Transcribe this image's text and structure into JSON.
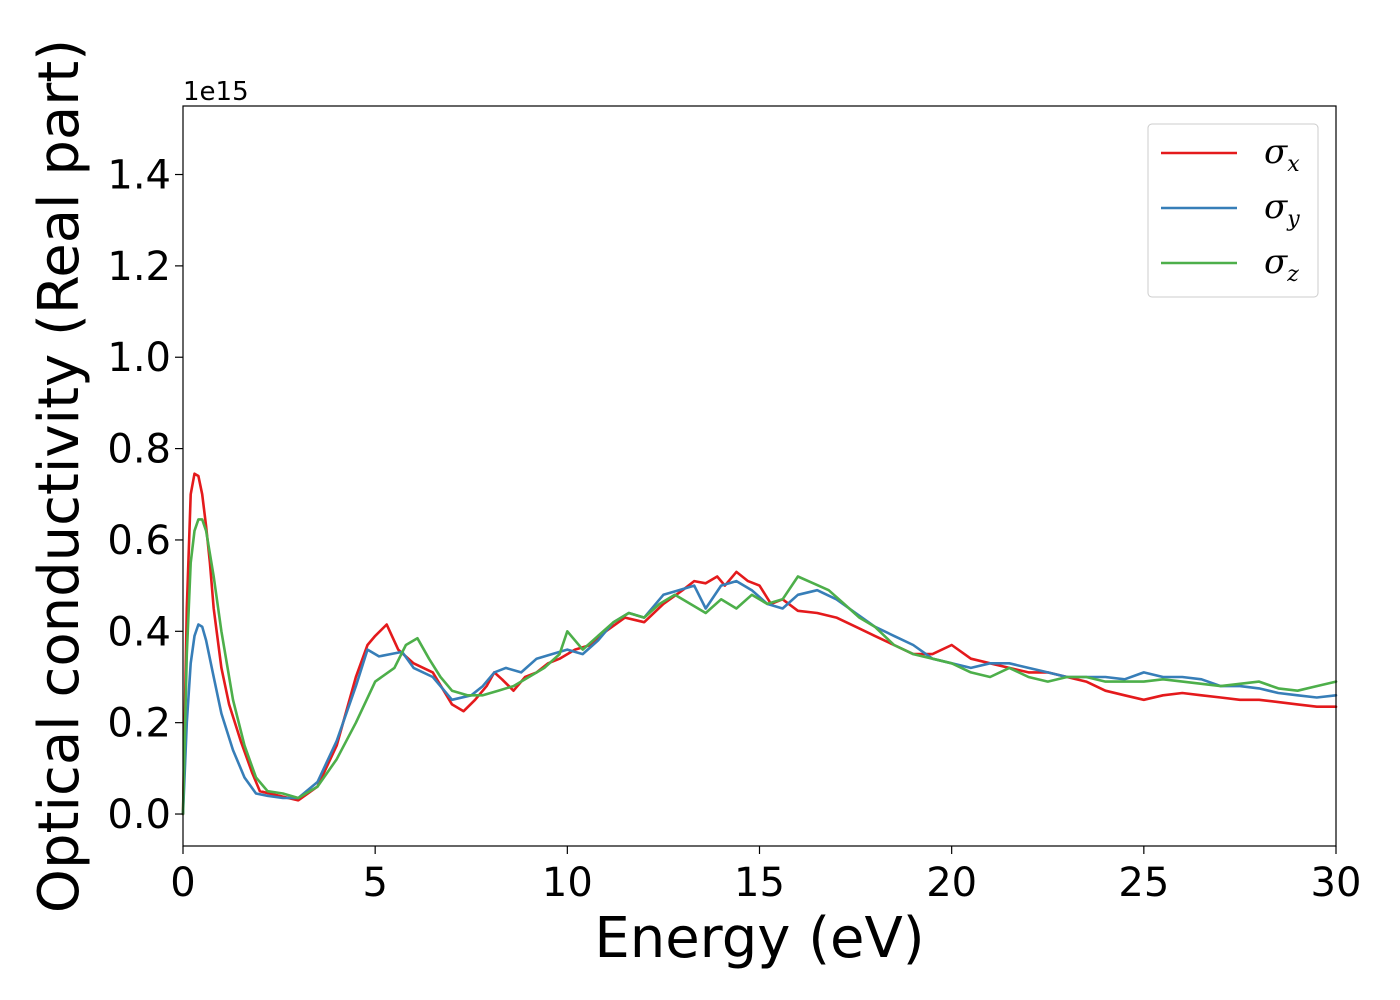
{
  "chart_data": {
    "type": "line",
    "xlabel": "Energy (eV)",
    "ylabel": "Optical conductivity (Real part)",
    "y_offset_text": "1e15",
    "xlim": [
      0,
      30
    ],
    "ylim": [
      -0.07,
      1.55
    ],
    "xticks": [
      0,
      5,
      10,
      15,
      20,
      25,
      30
    ],
    "xtick_labels": [
      "0",
      "5",
      "10",
      "15",
      "20",
      "25",
      "30"
    ],
    "yticks": [
      0.0,
      0.2,
      0.4,
      0.6,
      0.8,
      1.0,
      1.2,
      1.4
    ],
    "ytick_labels": [
      "0.0",
      "0.2",
      "0.4",
      "0.6",
      "0.8",
      "1.0",
      "1.2",
      "1.4"
    ],
    "grid": false,
    "legend_position": "top-right",
    "series": [
      {
        "name": "σx",
        "legend_base": "σ",
        "legend_sub": "x",
        "color": "#e41a1c",
        "x": [
          0,
          0.1,
          0.2,
          0.3,
          0.4,
          0.5,
          0.6,
          0.7,
          0.8,
          1.0,
          1.2,
          1.5,
          1.8,
          2.0,
          2.5,
          3.0,
          3.5,
          4.0,
          4.5,
          4.8,
          5.0,
          5.3,
          5.6,
          6.0,
          6.5,
          7.0,
          7.3,
          7.6,
          7.9,
          8.1,
          8.3,
          8.6,
          8.9,
          9.2,
          9.5,
          9.8,
          10.2,
          10.6,
          11.0,
          11.5,
          12.0,
          12.5,
          13.0,
          13.3,
          13.6,
          13.9,
          14.1,
          14.4,
          14.7,
          15.0,
          15.3,
          15.6,
          16.0,
          16.5,
          17.0,
          17.5,
          18.0,
          18.5,
          19.0,
          19.5,
          20.0,
          20.5,
          21.0,
          21.5,
          22.0,
          22.5,
          23.0,
          23.5,
          24.0,
          24.5,
          25.0,
          25.5,
          26.0,
          26.5,
          27.0,
          27.5,
          28.0,
          28.5,
          29.0,
          29.5,
          30.0
        ],
        "y": [
          0.0,
          0.45,
          0.7,
          0.745,
          0.74,
          0.7,
          0.63,
          0.55,
          0.45,
          0.32,
          0.24,
          0.16,
          0.09,
          0.05,
          0.04,
          0.03,
          0.06,
          0.15,
          0.3,
          0.37,
          0.39,
          0.415,
          0.36,
          0.33,
          0.31,
          0.24,
          0.225,
          0.25,
          0.28,
          0.31,
          0.295,
          0.27,
          0.3,
          0.31,
          0.33,
          0.34,
          0.36,
          0.37,
          0.4,
          0.43,
          0.42,
          0.46,
          0.49,
          0.51,
          0.505,
          0.52,
          0.5,
          0.53,
          0.51,
          0.5,
          0.46,
          0.47,
          0.445,
          0.44,
          0.43,
          0.41,
          0.39,
          0.37,
          0.35,
          0.35,
          0.37,
          0.34,
          0.33,
          0.32,
          0.31,
          0.31,
          0.3,
          0.29,
          0.27,
          0.26,
          0.25,
          0.26,
          0.265,
          0.26,
          0.255,
          0.25,
          0.25,
          0.245,
          0.24,
          0.235,
          0.235
        ]
      },
      {
        "name": "σy",
        "legend_base": "σ",
        "legend_sub": "y",
        "color": "#377eb8",
        "x": [
          0,
          0.1,
          0.2,
          0.3,
          0.4,
          0.5,
          0.6,
          0.8,
          1.0,
          1.3,
          1.6,
          1.9,
          2.2,
          2.6,
          3.0,
          3.5,
          4.0,
          4.5,
          4.8,
          5.1,
          5.4,
          5.7,
          6.0,
          6.5,
          7.0,
          7.5,
          7.8,
          8.1,
          8.4,
          8.8,
          9.2,
          9.6,
          10.0,
          10.4,
          10.8,
          11.2,
          11.6,
          12.0,
          12.5,
          12.9,
          13.3,
          13.6,
          14.0,
          14.4,
          14.8,
          15.2,
          15.6,
          16.0,
          16.5,
          17.0,
          17.5,
          18.0,
          18.5,
          19.0,
          19.5,
          20.0,
          20.5,
          21.0,
          21.5,
          22.0,
          22.5,
          23.0,
          23.5,
          24.0,
          24.5,
          25.0,
          25.5,
          26.0,
          26.5,
          27.0,
          27.5,
          28.0,
          28.5,
          29.0,
          29.5,
          30.0
        ],
        "y": [
          0.0,
          0.2,
          0.33,
          0.39,
          0.415,
          0.41,
          0.38,
          0.3,
          0.22,
          0.14,
          0.08,
          0.045,
          0.04,
          0.035,
          0.035,
          0.07,
          0.16,
          0.28,
          0.36,
          0.345,
          0.35,
          0.355,
          0.32,
          0.3,
          0.25,
          0.26,
          0.28,
          0.31,
          0.32,
          0.31,
          0.34,
          0.35,
          0.36,
          0.35,
          0.38,
          0.42,
          0.44,
          0.43,
          0.48,
          0.49,
          0.5,
          0.45,
          0.5,
          0.51,
          0.49,
          0.46,
          0.45,
          0.48,
          0.49,
          0.47,
          0.44,
          0.41,
          0.39,
          0.37,
          0.34,
          0.33,
          0.32,
          0.33,
          0.33,
          0.32,
          0.31,
          0.3,
          0.3,
          0.3,
          0.295,
          0.31,
          0.3,
          0.3,
          0.295,
          0.28,
          0.28,
          0.275,
          0.265,
          0.26,
          0.255,
          0.26
        ]
      },
      {
        "name": "σz",
        "legend_base": "σ",
        "legend_sub": "z",
        "color": "#4daf4a",
        "x": [
          0,
          0.1,
          0.2,
          0.3,
          0.4,
          0.5,
          0.6,
          0.8,
          1.0,
          1.3,
          1.6,
          1.9,
          2.2,
          2.6,
          3.0,
          3.5,
          4.0,
          4.5,
          5.0,
          5.5,
          5.8,
          6.1,
          6.4,
          6.7,
          7.0,
          7.4,
          7.8,
          8.2,
          8.6,
          9.0,
          9.4,
          9.8,
          10.0,
          10.4,
          10.8,
          11.2,
          11.6,
          12.0,
          12.4,
          12.8,
          13.2,
          13.6,
          14.0,
          14.4,
          14.8,
          15.2,
          15.6,
          16.0,
          16.4,
          16.8,
          17.2,
          17.6,
          18.0,
          18.5,
          19.0,
          19.5,
          20.0,
          20.5,
          21.0,
          21.5,
          22.0,
          22.5,
          23.0,
          23.5,
          24.0,
          24.5,
          25.0,
          25.5,
          26.0,
          26.5,
          27.0,
          27.5,
          28.0,
          28.5,
          29.0,
          29.5,
          30.0
        ],
        "y": [
          0.0,
          0.35,
          0.55,
          0.62,
          0.645,
          0.645,
          0.62,
          0.52,
          0.4,
          0.25,
          0.15,
          0.08,
          0.05,
          0.045,
          0.035,
          0.06,
          0.12,
          0.2,
          0.29,
          0.32,
          0.37,
          0.385,
          0.34,
          0.3,
          0.27,
          0.26,
          0.26,
          0.27,
          0.28,
          0.3,
          0.32,
          0.35,
          0.4,
          0.36,
          0.39,
          0.42,
          0.44,
          0.43,
          0.46,
          0.48,
          0.46,
          0.44,
          0.47,
          0.45,
          0.48,
          0.46,
          0.47,
          0.52,
          0.505,
          0.49,
          0.46,
          0.43,
          0.41,
          0.37,
          0.35,
          0.34,
          0.33,
          0.31,
          0.3,
          0.32,
          0.3,
          0.29,
          0.3,
          0.3,
          0.29,
          0.29,
          0.29,
          0.295,
          0.29,
          0.285,
          0.28,
          0.285,
          0.29,
          0.275,
          0.27,
          0.28,
          0.29
        ]
      }
    ]
  }
}
